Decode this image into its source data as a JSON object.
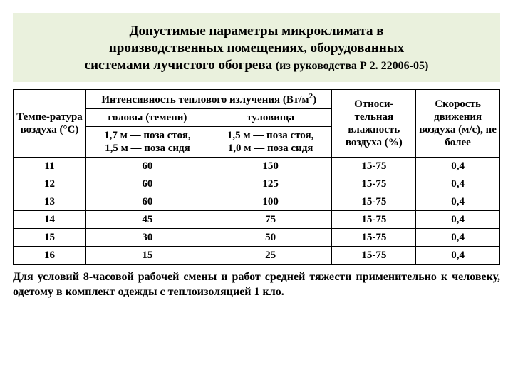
{
  "title": {
    "line1": "Допустимые параметры микроклимата в",
    "line2": "производственных помещениях, оборудованных",
    "line3": "системами лучистого обогрева ",
    "suffix": "(из руководства Р 2. 22006-05)"
  },
  "headers": {
    "temp": "Темпе-ратура воздуха (°С)",
    "intensity_group": "Интенсивность теплового излучения (Вт/м",
    "intensity_group_sup": "2",
    "intensity_group_close": ")",
    "head": "головы (темени)",
    "torso": "туловища",
    "pose_head_l1": "1,7 м — поза стоя,",
    "pose_head_l2": "1,5 м — поза сидя",
    "pose_torso_l1": "1,5 м — поза стоя,",
    "pose_torso_l2": "1,0 м — поза сидя",
    "humidity": "Относи-тельная влажность воздуха (%)",
    "speed": "Скорость движения воздуха (м/с), не более"
  },
  "rows": [
    {
      "t": "11",
      "head": "60",
      "torso": "150",
      "hum": "15-75",
      "spd": "0,4"
    },
    {
      "t": "12",
      "head": "60",
      "torso": "125",
      "hum": "15-75",
      "spd": "0,4"
    },
    {
      "t": "13",
      "head": "60",
      "torso": "100",
      "hum": "15-75",
      "spd": "0,4"
    },
    {
      "t": "14",
      "head": "45",
      "torso": "75",
      "hum": "15-75",
      "spd": "0,4"
    },
    {
      "t": "15",
      "head": "30",
      "torso": "50",
      "hum": "15-75",
      "spd": "0,4"
    },
    {
      "t": "16",
      "head": "15",
      "torso": "25",
      "hum": "15-75",
      "spd": "0,4"
    }
  ],
  "footnote": "Для условий 8-часовой рабочей смены и работ средней тяжести применительно к человеку, одетому в комплект одежды с теплоизоляцией 1 кло.",
  "colors": {
    "title_bg": "#eaf1dd",
    "border": "#000000",
    "text": "#000000",
    "page_bg": "#ffffff"
  }
}
